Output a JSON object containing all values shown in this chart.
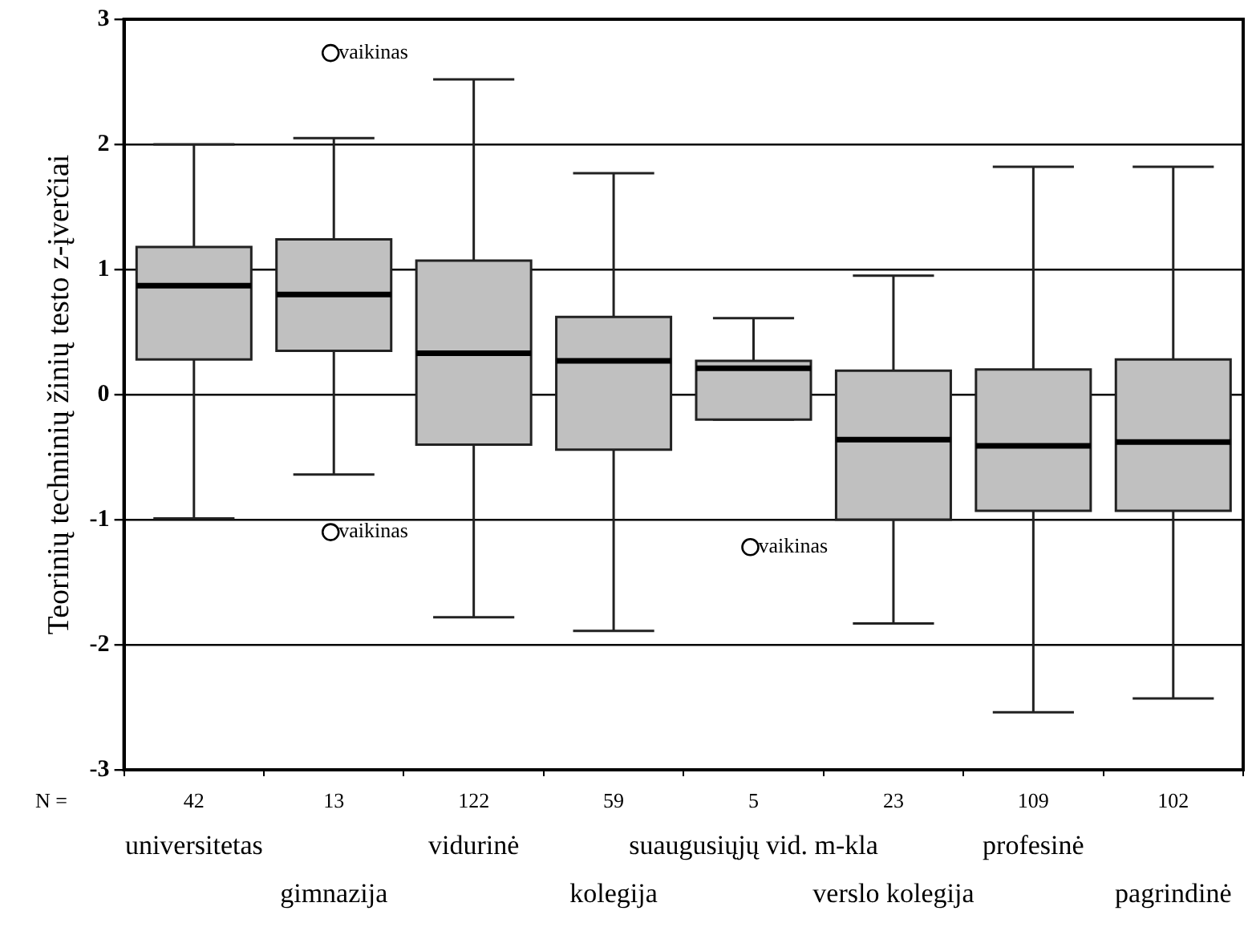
{
  "chart_data": {
    "type": "box",
    "ylabel": "Teorinių techninių žinių testo z-įverčiai",
    "categories": [
      "universitetas",
      "gimnazija",
      "vidurinė",
      "kolegija",
      "suaugusiųjų vid. m-kla",
      "verslo kolegija",
      "profesinė",
      "pagrindinė"
    ],
    "series": [
      {
        "color": "#c0c0c0",
        "boxes": [
          {
            "low": -0.99,
            "q1": 0.28,
            "median": 0.87,
            "q3": 1.18,
            "high": 2.0
          },
          {
            "low": -0.64,
            "q1": 0.35,
            "median": 0.8,
            "q3": 1.24,
            "high": 2.05,
            "outliers": [
              2.73,
              -1.1
            ]
          },
          {
            "low": -1.78,
            "q1": -0.4,
            "median": 0.33,
            "q3": 1.07,
            "high": 2.52
          },
          {
            "low": -1.89,
            "q1": -0.44,
            "median": 0.27,
            "q3": 0.62,
            "high": 1.77
          },
          {
            "low": -0.2,
            "q1": -0.2,
            "median": 0.21,
            "q3": 0.27,
            "high": 0.61,
            "outliers": [
              -1.22
            ]
          },
          {
            "low": -1.83,
            "q1": -1.0,
            "median": -0.36,
            "q3": 0.19,
            "high": 0.95
          },
          {
            "low": -2.54,
            "q1": -0.93,
            "median": -0.41,
            "q3": 0.2,
            "high": 1.82
          },
          {
            "low": -2.43,
            "q1": -0.93,
            "median": -0.38,
            "q3": 0.28,
            "high": 1.82
          }
        ]
      }
    ],
    "ylim": [
      -3,
      3
    ],
    "yticks": [
      -3,
      -2,
      -1,
      0,
      1,
      2,
      3
    ],
    "grid": "y",
    "legend": false,
    "annotations": [
      "N =",
      "42",
      "13",
      "122",
      "59",
      "5",
      "23",
      "109",
      "102",
      "vaikinas",
      "vaikinas",
      "vaikinas"
    ]
  }
}
